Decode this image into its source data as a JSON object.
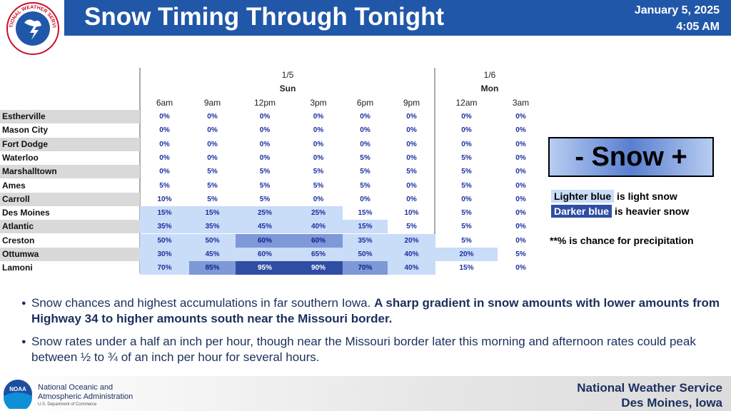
{
  "header": {
    "logo_text": "NATIONAL WEATHER SERVICE",
    "title": "Snow Timing Through Tonight",
    "date": "January 5, 2025",
    "time": "4:05 AM"
  },
  "table": {
    "days": [
      {
        "date": "1/5",
        "day": "Sun"
      },
      {
        "date": "1/6",
        "day": "Mon"
      }
    ],
    "times": [
      "6am",
      "9am",
      "12pm",
      "3pm",
      "6pm",
      "9pm",
      "12am",
      "3am"
    ],
    "rows": [
      {
        "name": "Estherville",
        "values": [
          "0%",
          "0%",
          "0%",
          "0%",
          "0%",
          "0%",
          "0%",
          "0%"
        ],
        "shading": [
          0,
          0,
          0,
          0,
          0,
          0,
          0,
          0
        ]
      },
      {
        "name": "Mason City",
        "values": [
          "0%",
          "0%",
          "0%",
          "0%",
          "0%",
          "0%",
          "0%",
          "0%"
        ],
        "shading": [
          0,
          0,
          0,
          0,
          0,
          0,
          0,
          0
        ]
      },
      {
        "name": "Fort Dodge",
        "values": [
          "0%",
          "0%",
          "0%",
          "0%",
          "0%",
          "0%",
          "0%",
          "0%"
        ],
        "shading": [
          0,
          0,
          0,
          0,
          0,
          0,
          0,
          0
        ]
      },
      {
        "name": "Waterloo",
        "values": [
          "0%",
          "0%",
          "0%",
          "0%",
          "5%",
          "0%",
          "5%",
          "0%"
        ],
        "shading": [
          0,
          0,
          0,
          0,
          0,
          0,
          0,
          0
        ]
      },
      {
        "name": "Marshalltown",
        "values": [
          "0%",
          "5%",
          "5%",
          "5%",
          "5%",
          "5%",
          "5%",
          "0%"
        ],
        "shading": [
          0,
          0,
          0,
          0,
          0,
          0,
          0,
          0
        ]
      },
      {
        "name": "Ames",
        "values": [
          "5%",
          "5%",
          "5%",
          "5%",
          "5%",
          "0%",
          "5%",
          "0%"
        ],
        "shading": [
          0,
          0,
          0,
          0,
          0,
          0,
          0,
          0
        ]
      },
      {
        "name": "Carroll",
        "values": [
          "10%",
          "5%",
          "5%",
          "0%",
          "0%",
          "0%",
          "0%",
          "0%"
        ],
        "shading": [
          0,
          0,
          0,
          0,
          0,
          0,
          0,
          0
        ]
      },
      {
        "name": "Des Moines",
        "values": [
          "15%",
          "15%",
          "25%",
          "25%",
          "15%",
          "10%",
          "5%",
          "0%"
        ],
        "shading": [
          1,
          1,
          1,
          1,
          0,
          0,
          0,
          0
        ]
      },
      {
        "name": "Atlantic",
        "values": [
          "35%",
          "35%",
          "45%",
          "40%",
          "15%",
          "5%",
          "5%",
          "0%"
        ],
        "shading": [
          1,
          1,
          1,
          1,
          1,
          0,
          0,
          0
        ]
      },
      {
        "name": "Creston",
        "values": [
          "50%",
          "50%",
          "60%",
          "60%",
          "35%",
          "20%",
          "5%",
          "0%"
        ],
        "shading": [
          1,
          1,
          2,
          2,
          1,
          1,
          0,
          0
        ]
      },
      {
        "name": "Ottumwa",
        "values": [
          "30%",
          "45%",
          "60%",
          "65%",
          "50%",
          "40%",
          "20%",
          "5%"
        ],
        "shading": [
          1,
          1,
          1,
          1,
          1,
          1,
          1,
          0
        ]
      },
      {
        "name": "Lamoni",
        "values": [
          "70%",
          "85%",
          "95%",
          "90%",
          "70%",
          "40%",
          "15%",
          "0%"
        ],
        "shading": [
          1,
          2,
          3,
          3,
          2,
          1,
          0,
          0
        ]
      }
    ]
  },
  "legend": {
    "scale": "- Snow +",
    "light_label": "Lighter blue",
    "light_text": "is light snow",
    "dark_label": "Darker blue",
    "dark_text": "is heavier snow",
    "note": "**% is chance for precipitation"
  },
  "bullets": [
    {
      "text": "Snow chances and highest accumulations in far southern Iowa. ",
      "bold": "A sharp gradient in snow amounts with lower amounts from Highway 34 to higher amounts south near the Missouri border."
    },
    {
      "text": "Snow rates under a half an inch per hour, though near the Missouri border later this morning and afternoon rates could peak between ½ to ¾ of an inch per hour for several hours.",
      "bold": null
    }
  ],
  "footer": {
    "noaa_logo": "NOAA",
    "org_line1": "National Oceanic and",
    "org_line2": "Atmospheric Administration",
    "dept": "U.S. Department of Commerce",
    "office": "National Weather Service",
    "location": "Des Moines, Iowa"
  }
}
